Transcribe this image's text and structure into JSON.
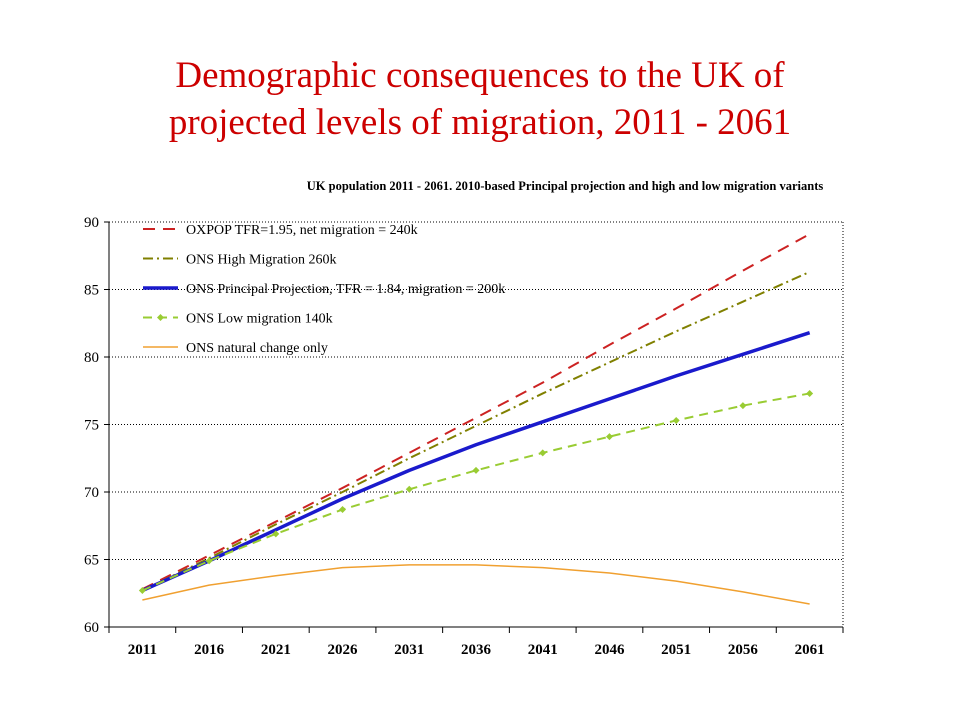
{
  "slide": {
    "title_line1": "Demographic consequences to the UK of",
    "title_line2": "projected levels of migration, 2011 - 2061"
  },
  "chart_data": {
    "type": "line",
    "title": "UK population 2011 - 2061.  2010-based Principal projection and high and low migration variants",
    "xlabel": "",
    "ylabel": "",
    "x": [
      2011,
      2016,
      2021,
      2026,
      2031,
      2036,
      2041,
      2046,
      2051,
      2056,
      2061
    ],
    "x_tick_labels": [
      "2011",
      "2016",
      "2021",
      "2026",
      "2031",
      "2036",
      "2041",
      "2046",
      "2051",
      "2056",
      "2061"
    ],
    "ylim": [
      60,
      90
    ],
    "y_ticks": [
      60,
      65,
      70,
      75,
      80,
      85,
      90
    ],
    "grid": "horizontal-dotted",
    "legend_position": "top-left",
    "series": [
      {
        "name": "OXPOP TFR=1.95, net migration = 240k",
        "color": "#cc2222",
        "style": "dashed",
        "values": [
          62.8,
          65.3,
          67.8,
          70.3,
          72.9,
          75.5,
          78.1,
          80.9,
          83.6,
          86.4,
          89.1
        ]
      },
      {
        "name": "ONS High Migration 260k",
        "color": "#808000",
        "style": "dashdot",
        "values": [
          62.7,
          65.1,
          67.6,
          70.0,
          72.5,
          74.9,
          77.3,
          79.6,
          81.9,
          84.1,
          86.3
        ]
      },
      {
        "name": "ONS Principal Projection, TFR = 1.84, migration = 200k",
        "color": "#1a1acc",
        "style": "solid-thick",
        "values": [
          62.7,
          64.9,
          67.2,
          69.5,
          71.6,
          73.5,
          75.2,
          76.9,
          78.6,
          80.2,
          81.8
        ]
      },
      {
        "name": "ONS Low migration 140k",
        "color": "#99cc33",
        "style": "dashed-markers",
        "values": [
          62.7,
          64.9,
          66.9,
          68.7,
          70.2,
          71.6,
          72.9,
          74.1,
          75.3,
          76.4,
          77.3
        ]
      },
      {
        "name": "ONS natural change only",
        "color": "#f0a030",
        "style": "solid-thin",
        "values": [
          62.0,
          63.1,
          63.8,
          64.4,
          64.6,
          64.6,
          64.4,
          64.0,
          63.4,
          62.6,
          61.7
        ]
      }
    ]
  }
}
